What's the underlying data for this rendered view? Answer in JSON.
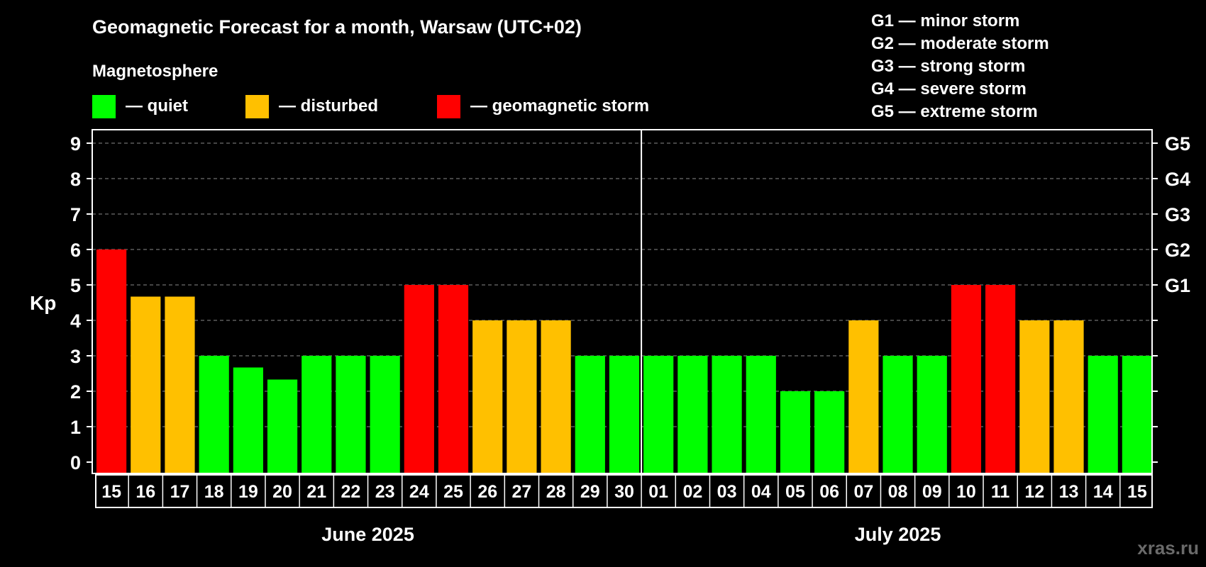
{
  "chart_data": {
    "type": "bar",
    "title": "Geomagnetic Forecast for a month, Warsaw (UTC+02)",
    "ylabel": "Kp",
    "ylim": [
      0,
      9
    ],
    "yticks": [
      "0",
      "1",
      "2",
      "3",
      "4",
      "5",
      "6",
      "7",
      "8",
      "9"
    ],
    "g_scale": [
      {
        "kp": 5,
        "label": "G1"
      },
      {
        "kp": 6,
        "label": "G2"
      },
      {
        "kp": 7,
        "label": "G3"
      },
      {
        "kp": 8,
        "label": "G4"
      },
      {
        "kp": 9,
        "label": "G5"
      }
    ],
    "legend_title": "Magnetosphere",
    "legend": [
      {
        "key": "quiet",
        "label": "— quiet",
        "color": "#00ff00"
      },
      {
        "key": "disturbed",
        "label": "— disturbed",
        "color": "#ffc000"
      },
      {
        "key": "storm",
        "label": "— geomagnetic storm",
        "color": "#ff0000"
      }
    ],
    "storm_levels": [
      "G1 — minor storm",
      "G2 — moderate storm",
      "G3 — strong storm",
      "G4 — severe storm",
      "G5 — extreme storm"
    ],
    "categories": [
      "15",
      "16",
      "17",
      "18",
      "19",
      "20",
      "21",
      "22",
      "23",
      "24",
      "25",
      "26",
      "27",
      "28",
      "29",
      "30",
      "01",
      "02",
      "03",
      "04",
      "05",
      "06",
      "07",
      "08",
      "09",
      "10",
      "11",
      "12",
      "13",
      "14",
      "15"
    ],
    "values": [
      6,
      4.67,
      4.67,
      3,
      2.67,
      2.33,
      3,
      3,
      3,
      5,
      5,
      4,
      4,
      4,
      3,
      3,
      3,
      3,
      3,
      3,
      2,
      2,
      4,
      3,
      3,
      5,
      5,
      4,
      4,
      3,
      3
    ],
    "status": [
      "storm",
      "disturbed",
      "disturbed",
      "quiet",
      "quiet",
      "quiet",
      "quiet",
      "quiet",
      "quiet",
      "storm",
      "storm",
      "disturbed",
      "disturbed",
      "disturbed",
      "quiet",
      "quiet",
      "quiet",
      "quiet",
      "quiet",
      "quiet",
      "quiet",
      "quiet",
      "disturbed",
      "quiet",
      "quiet",
      "storm",
      "storm",
      "disturbed",
      "disturbed",
      "quiet",
      "quiet"
    ],
    "months": [
      {
        "label": "June 2025",
        "start": 0,
        "end": 15
      },
      {
        "label": "July 2025",
        "start": 16,
        "end": 30
      }
    ],
    "watermark": "xras.ru"
  }
}
